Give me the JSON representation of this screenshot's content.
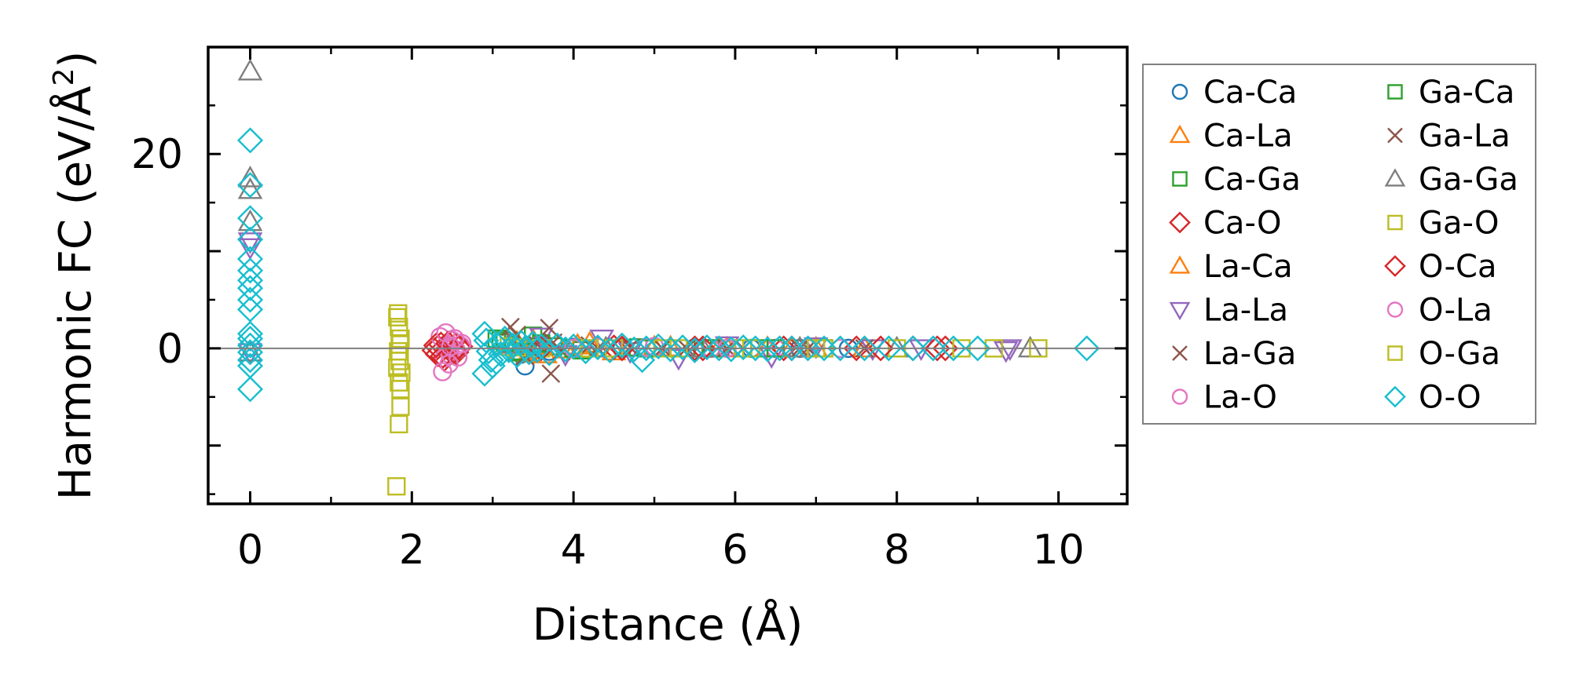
{
  "chart_data": {
    "type": "scatter",
    "xlabel": "Distance (Å)",
    "ylabel_parts": [
      "Harmonic FC (eV/Å",
      "2",
      ")"
    ],
    "xlim": [
      -0.52,
      10.85
    ],
    "ylim": [
      -16,
      31
    ],
    "xticks": [
      0,
      2,
      4,
      6,
      8,
      10
    ],
    "yticks": [
      -10,
      0,
      10,
      20
    ],
    "yticks_labeled": [
      0,
      20
    ],
    "hline_y": 0,
    "grid": false,
    "legend_placement": "outside-right",
    "series": [
      {
        "name": "Ca-Ca",
        "marker": "circle",
        "color": "#1f77b4",
        "points": [
          [
            3.25,
            0.4
          ],
          [
            3.35,
            -0.6
          ],
          [
            3.4,
            -1.8
          ],
          [
            3.55,
            0.2
          ],
          [
            3.7,
            -0.3
          ],
          [
            4.0,
            0.1
          ],
          [
            4.6,
            0.0
          ],
          [
            5.5,
            0.05
          ],
          [
            6.2,
            0.0
          ],
          [
            6.8,
            0.0
          ],
          [
            7.4,
            0.0
          ]
        ]
      },
      {
        "name": "Ca-La",
        "marker": "triangle-up",
        "color": "#ff7f0e",
        "points": [
          [
            3.3,
            0.6
          ],
          [
            3.45,
            -0.5
          ],
          [
            3.6,
            0.3
          ],
          [
            3.9,
            -0.1
          ],
          [
            4.2,
            0.5
          ],
          [
            4.5,
            -0.3
          ],
          [
            5.2,
            0.1
          ],
          [
            5.8,
            0.0
          ],
          [
            6.4,
            0.05
          ],
          [
            7.0,
            0.0
          ],
          [
            7.6,
            0.0
          ]
        ]
      },
      {
        "name": "Ca-Ga",
        "marker": "square",
        "color": "#2ca02c",
        "points": [
          [
            3.05,
            1.0
          ],
          [
            3.15,
            0.6
          ],
          [
            3.3,
            -0.4
          ],
          [
            3.5,
            1.3
          ],
          [
            3.75,
            0.2
          ],
          [
            4.1,
            -0.2
          ],
          [
            4.8,
            0.1
          ],
          [
            5.6,
            0.0
          ],
          [
            6.3,
            0.0
          ],
          [
            7.1,
            0.0
          ]
        ]
      },
      {
        "name": "Ca-O",
        "marker": "diamond",
        "color": "#d62728",
        "points": [
          [
            2.28,
            -0.2
          ],
          [
            2.32,
            -0.6
          ],
          [
            2.36,
            0.4
          ],
          [
            2.4,
            -1.1
          ],
          [
            2.45,
            0.0
          ],
          [
            2.5,
            0.6
          ],
          [
            2.55,
            -0.4
          ],
          [
            2.6,
            0.2
          ],
          [
            3.4,
            0.0
          ],
          [
            4.5,
            0.1
          ],
          [
            5.5,
            0.0
          ],
          [
            6.6,
            0.0
          ],
          [
            7.5,
            0.0
          ],
          [
            8.2,
            0.0
          ],
          [
            8.6,
            0.0
          ]
        ]
      },
      {
        "name": "La-Ca",
        "marker": "triangle-up",
        "color": "#ff7f0e",
        "points": [
          [
            3.35,
            -0.3
          ],
          [
            3.5,
            0.8
          ],
          [
            3.65,
            -0.6
          ],
          [
            4.05,
            0.3
          ],
          [
            4.4,
            0.0
          ],
          [
            5.0,
            0.1
          ],
          [
            5.9,
            0.0
          ],
          [
            6.7,
            0.0
          ]
        ]
      },
      {
        "name": "La-La",
        "marker": "triangle-down",
        "color": "#9467bd",
        "points": [
          [
            0.0,
            11.0
          ],
          [
            0.0,
            10.4
          ],
          [
            0.0,
            -0.4
          ],
          [
            3.6,
            1.2
          ],
          [
            3.9,
            -0.6
          ],
          [
            4.35,
            1.0
          ],
          [
            4.7,
            -0.3
          ],
          [
            5.3,
            -1.0
          ],
          [
            5.9,
            0.3
          ],
          [
            6.45,
            -0.8
          ],
          [
            7.0,
            0.2
          ],
          [
            7.7,
            0.0
          ],
          [
            8.3,
            0.0
          ],
          [
            9.35,
            -0.2
          ],
          [
            9.4,
            0.0
          ]
        ]
      },
      {
        "name": "La-Ga",
        "marker": "x",
        "color": "#8c564b",
        "points": [
          [
            3.22,
            2.2
          ],
          [
            3.3,
            1.4
          ],
          [
            3.4,
            -0.8
          ],
          [
            3.55,
            0.4
          ],
          [
            3.7,
            2.1
          ],
          [
            3.72,
            -2.6
          ],
          [
            3.85,
            -0.3
          ],
          [
            4.2,
            0.3
          ],
          [
            4.7,
            0.1
          ],
          [
            5.4,
            0.0
          ],
          [
            6.1,
            0.0
          ],
          [
            6.9,
            0.0
          ],
          [
            7.6,
            0.0
          ]
        ]
      },
      {
        "name": "La-O",
        "marker": "circle",
        "color": "#e377c2",
        "points": [
          [
            2.35,
            1.2
          ],
          [
            2.4,
            -1.0
          ],
          [
            2.43,
            0.4
          ],
          [
            2.47,
            -0.6
          ],
          [
            2.5,
            0.8
          ],
          [
            2.55,
            -0.2
          ],
          [
            2.6,
            0.3
          ],
          [
            4.3,
            0.1
          ],
          [
            5.0,
            0.2
          ],
          [
            5.7,
            0.0
          ],
          [
            6.5,
            0.0
          ],
          [
            7.3,
            0.0
          ]
        ]
      },
      {
        "name": "Ga-Ca",
        "marker": "square",
        "color": "#2ca02c",
        "points": [
          [
            3.1,
            0.8
          ],
          [
            3.3,
            -0.3
          ],
          [
            3.6,
            0.5
          ],
          [
            4.0,
            0.0
          ],
          [
            4.9,
            0.0
          ],
          [
            5.7,
            0.0
          ],
          [
            6.5,
            0.0
          ]
        ]
      },
      {
        "name": "Ga-La",
        "marker": "x",
        "color": "#8c564b",
        "points": [
          [
            3.25,
            0.9
          ],
          [
            3.45,
            -0.5
          ],
          [
            3.75,
            0.6
          ],
          [
            4.3,
            0.0
          ],
          [
            5.1,
            0.0
          ],
          [
            5.9,
            0.0
          ],
          [
            6.8,
            0.0
          ]
        ]
      },
      {
        "name": "Ga-Ga",
        "marker": "triangle-up",
        "color": "#7f7f7f",
        "points": [
          [
            0.0,
            28.5
          ],
          [
            0.0,
            17.5
          ],
          [
            0.0,
            16.3
          ],
          [
            0.0,
            13.0
          ],
          [
            0.0,
            -0.4
          ],
          [
            3.2,
            0.4
          ],
          [
            4.4,
            0.0
          ],
          [
            5.6,
            0.0
          ],
          [
            6.8,
            0.0
          ],
          [
            8.0,
            0.0
          ],
          [
            9.65,
            0.0
          ]
        ]
      },
      {
        "name": "Ga-O",
        "marker": "square",
        "color": "#bcbd22",
        "points": [
          [
            1.82,
            3.2
          ],
          [
            1.84,
            2.2
          ],
          [
            1.86,
            1.0
          ],
          [
            1.83,
            -0.3
          ],
          [
            1.85,
            -1.3
          ],
          [
            1.87,
            -2.5
          ],
          [
            1.84,
            -3.5
          ],
          [
            1.86,
            -6.0
          ],
          [
            1.84,
            -7.8
          ],
          [
            1.81,
            -14.2
          ],
          [
            3.2,
            0.2
          ],
          [
            3.6,
            0.0
          ],
          [
            4.5,
            0.0
          ],
          [
            5.3,
            0.0
          ],
          [
            6.2,
            0.0
          ],
          [
            7.1,
            0.0
          ],
          [
            8.0,
            0.0
          ],
          [
            8.8,
            0.0
          ],
          [
            9.2,
            0.0
          ],
          [
            9.75,
            0.0
          ]
        ]
      },
      {
        "name": "O-Ca",
        "marker": "diamond",
        "color": "#d62728",
        "points": [
          [
            2.3,
            0.3
          ],
          [
            2.38,
            -0.8
          ],
          [
            2.45,
            0.5
          ],
          [
            2.52,
            -0.3
          ],
          [
            2.58,
            0.1
          ],
          [
            3.6,
            0.0
          ],
          [
            4.6,
            0.0
          ],
          [
            5.6,
            0.0
          ],
          [
            6.7,
            0.0
          ],
          [
            7.8,
            0.0
          ],
          [
            8.5,
            0.0
          ]
        ]
      },
      {
        "name": "O-La",
        "marker": "circle",
        "color": "#e377c2",
        "points": [
          [
            2.38,
            -2.4
          ],
          [
            2.42,
            1.6
          ],
          [
            2.46,
            -1.6
          ],
          [
            2.48,
            0.2
          ],
          [
            2.53,
            1.0
          ],
          [
            2.57,
            -0.9
          ],
          [
            2.62,
            0.5
          ],
          [
            4.0,
            0.0
          ],
          [
            4.9,
            0.1
          ],
          [
            5.9,
            0.0
          ],
          [
            6.9,
            0.0
          ]
        ]
      },
      {
        "name": "O-Ga",
        "marker": "square",
        "color": "#bcbd22",
        "points": [
          [
            1.83,
            3.6
          ],
          [
            1.85,
            0.4
          ],
          [
            1.82,
            -2.0
          ],
          [
            1.86,
            -4.2
          ],
          [
            3.3,
            0.1
          ],
          [
            4.2,
            0.0
          ],
          [
            5.1,
            0.0
          ],
          [
            6.1,
            0.0
          ],
          [
            7.0,
            0.0
          ]
        ]
      },
      {
        "name": "O-O",
        "marker": "diamond",
        "color": "#17becf",
        "points": [
          [
            0.0,
            21.4
          ],
          [
            0.0,
            16.8
          ],
          [
            0.0,
            13.4
          ],
          [
            0.0,
            11.2
          ],
          [
            0.0,
            9.2
          ],
          [
            0.0,
            8.0
          ],
          [
            0.0,
            7.0
          ],
          [
            0.0,
            6.2
          ],
          [
            0.0,
            5.0
          ],
          [
            0.0,
            4.0
          ],
          [
            0.0,
            1.5
          ],
          [
            0.0,
            1.0
          ],
          [
            0.0,
            0.3
          ],
          [
            0.0,
            -0.4
          ],
          [
            0.0,
            -1.2
          ],
          [
            0.0,
            -1.8
          ],
          [
            0.0,
            -4.2
          ],
          [
            2.9,
            1.5
          ],
          [
            2.92,
            0.8
          ],
          [
            2.95,
            -0.3
          ],
          [
            2.98,
            -1.2
          ],
          [
            2.9,
            -2.6
          ],
          [
            3.0,
            -1.8
          ],
          [
            3.05,
            0.4
          ],
          [
            3.1,
            -0.6
          ],
          [
            3.15,
            1.0
          ],
          [
            3.2,
            -0.2
          ],
          [
            3.25,
            0.3
          ],
          [
            3.3,
            -0.7
          ],
          [
            3.35,
            0.6
          ],
          [
            3.4,
            0.0
          ],
          [
            3.45,
            -0.4
          ],
          [
            3.5,
            0.5
          ],
          [
            3.55,
            -0.2
          ],
          [
            3.6,
            0.2
          ],
          [
            3.7,
            -0.5
          ],
          [
            3.8,
            0.3
          ],
          [
            3.9,
            -0.1
          ],
          [
            4.0,
            0.2
          ],
          [
            4.15,
            -0.3
          ],
          [
            4.3,
            0.1
          ],
          [
            4.45,
            -0.2
          ],
          [
            4.6,
            0.3
          ],
          [
            4.75,
            -0.1
          ],
          [
            4.85,
            -1.2
          ],
          [
            4.9,
            0.0
          ],
          [
            5.05,
            0.2
          ],
          [
            5.2,
            -0.1
          ],
          [
            5.35,
            0.1
          ],
          [
            5.5,
            -0.2
          ],
          [
            5.65,
            0.1
          ],
          [
            5.8,
            0.0
          ],
          [
            5.95,
            -0.1
          ],
          [
            6.1,
            0.1
          ],
          [
            6.25,
            0.0
          ],
          [
            6.4,
            -0.1
          ],
          [
            6.55,
            0.0
          ],
          [
            6.7,
            0.0
          ],
          [
            6.9,
            0.0
          ],
          [
            7.1,
            0.0
          ],
          [
            7.3,
            0.0
          ],
          [
            7.6,
            0.0
          ],
          [
            7.9,
            0.0
          ],
          [
            8.2,
            0.0
          ],
          [
            8.45,
            0.0
          ],
          [
            8.7,
            0.0
          ],
          [
            9.0,
            0.0
          ],
          [
            10.35,
            0.0
          ]
        ]
      }
    ]
  }
}
